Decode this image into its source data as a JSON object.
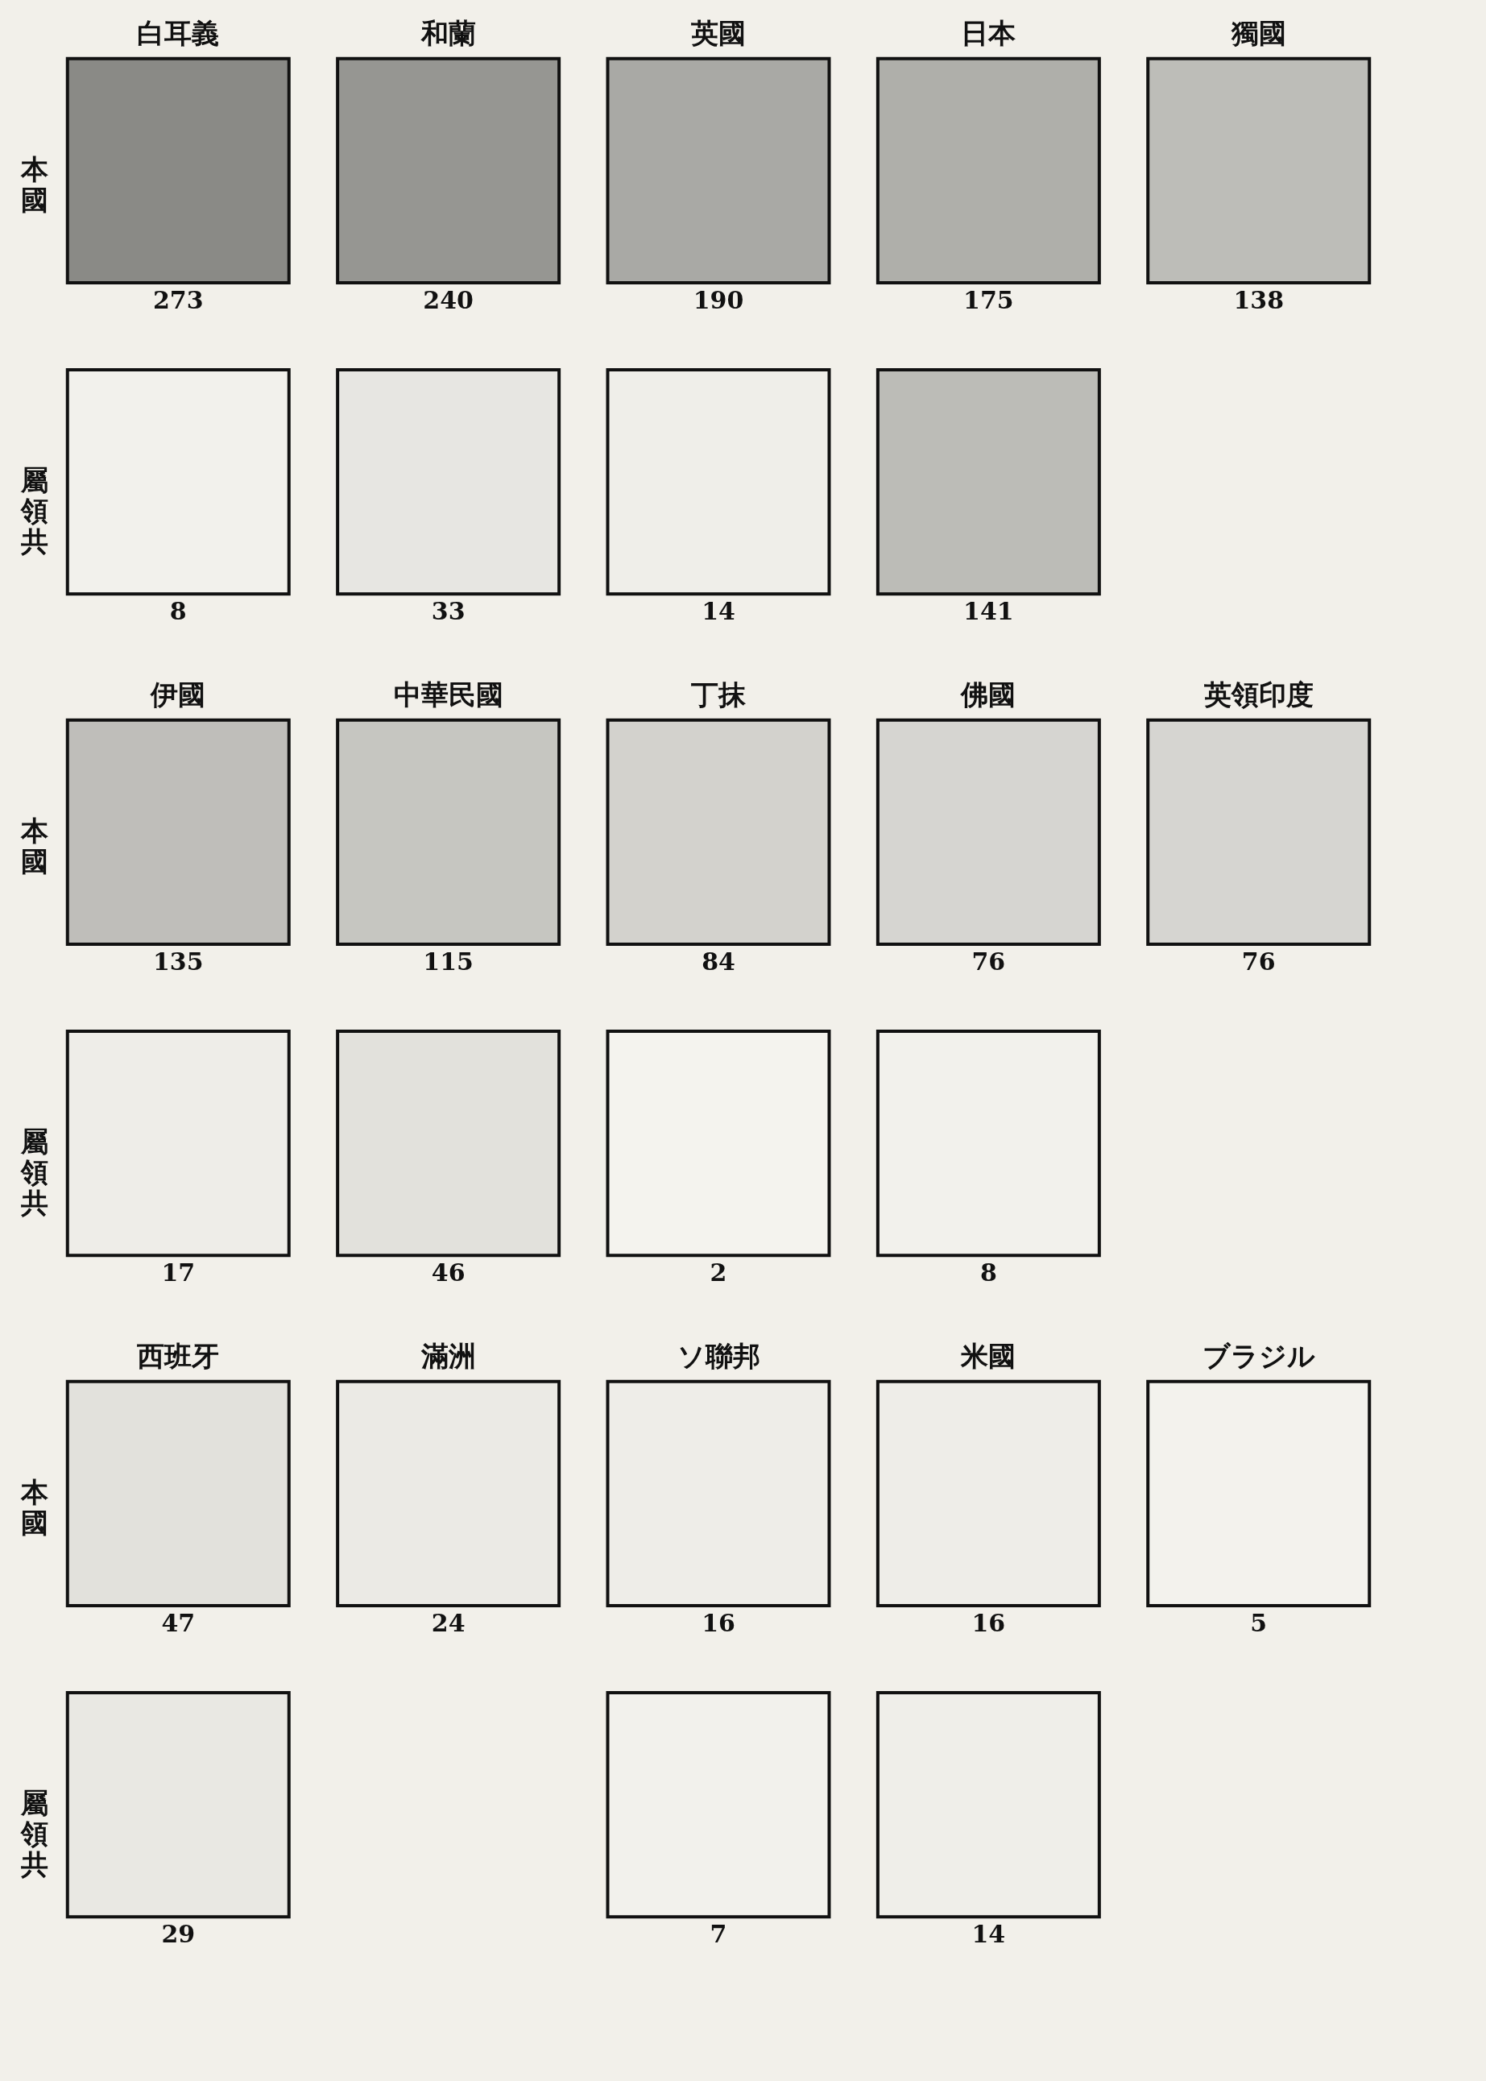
{
  "chart_data": [
    {
      "type": "heatmap",
      "data_labels": true,
      "categories": [
        "白耳義",
        "和蘭",
        "英國",
        "日本",
        "獨國"
      ],
      "y_categories": [
        "本國",
        "屬領共"
      ],
      "cells": [
        [
          273,
          240,
          190,
          175,
          138
        ],
        [
          8,
          33,
          14,
          141,
          null
        ]
      ]
    },
    {
      "type": "heatmap",
      "data_labels": true,
      "categories": [
        "伊國",
        "中華民國",
        "丁抹",
        "佛國",
        "英領印度"
      ],
      "y_categories": [
        "本國",
        "屬領共"
      ],
      "cells": [
        [
          135,
          115,
          84,
          76,
          76
        ],
        [
          17,
          46,
          2,
          8,
          null
        ]
      ]
    },
    {
      "type": "heatmap",
      "data_labels": true,
      "categories": [
        "西班牙",
        "滿洲",
        "ソ聯邦",
        "米國",
        "ブラジル"
      ],
      "y_categories": [
        "本國",
        "屬領共"
      ],
      "cells": [
        [
          47,
          24,
          16,
          16,
          5
        ],
        [
          29,
          null,
          7,
          14,
          null
        ]
      ]
    }
  ]
}
